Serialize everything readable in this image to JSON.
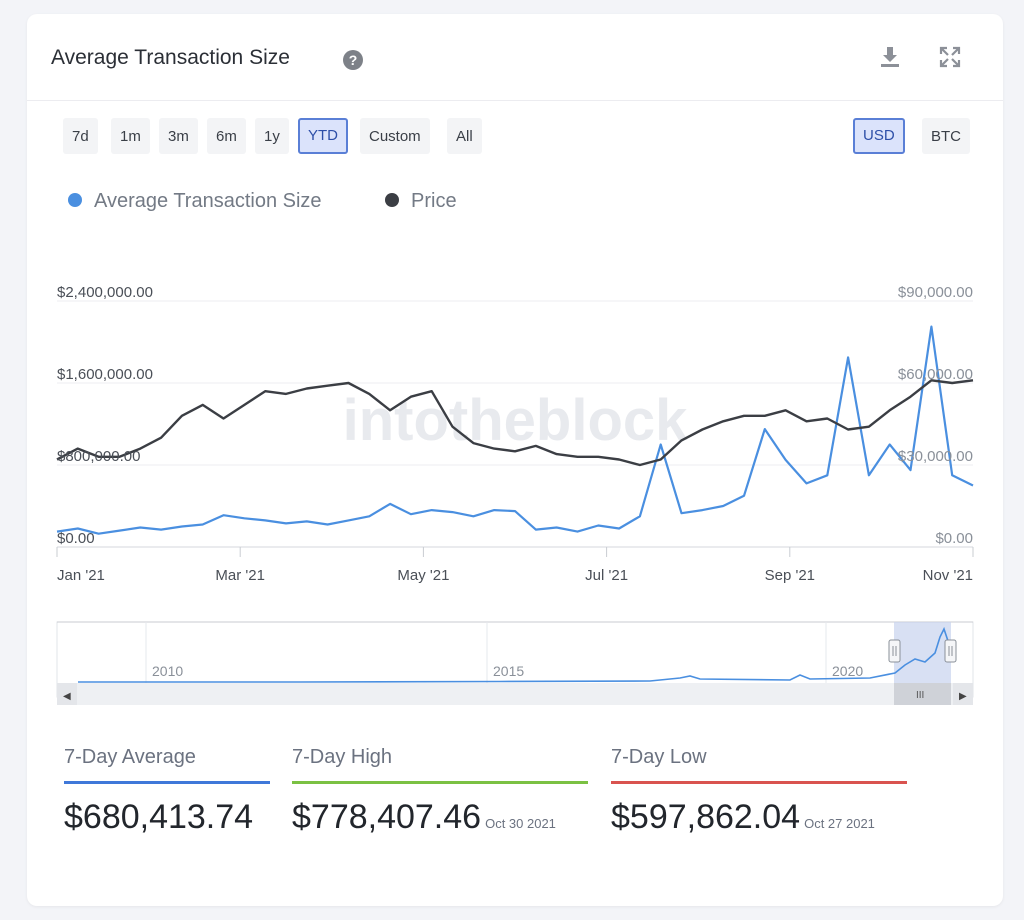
{
  "header": {
    "title": "Average Transaction Size",
    "help_icon": "question-circle-icon",
    "download_icon": "download-icon",
    "fullscreen_icon": "expand-icon"
  },
  "range_buttons": [
    {
      "label": "7d",
      "active": false
    },
    {
      "label": "1m",
      "active": false
    },
    {
      "label": "3m",
      "active": false
    },
    {
      "label": "6m",
      "active": false
    },
    {
      "label": "1y",
      "active": false
    },
    {
      "label": "YTD",
      "active": true
    },
    {
      "label": "Custom",
      "active": false
    },
    {
      "label": "All",
      "active": false
    }
  ],
  "currency_buttons": [
    {
      "label": "USD",
      "active": true
    },
    {
      "label": "BTC",
      "active": false
    }
  ],
  "watermark": "intotheblock",
  "navigator": {
    "year_labels": [
      "2010",
      "2015",
      "2020"
    ],
    "left_arrow": "◀",
    "right_arrow": "▶",
    "grip": "III"
  },
  "stats": [
    {
      "label": "7-Day Average",
      "value": "$680,413.74",
      "date": "",
      "color": "#3f78d9"
    },
    {
      "label": "7-Day High",
      "value": "$778,407.46",
      "date": "Oct 30 2021",
      "color": "#7bc143"
    },
    {
      "label": "7-Day Low",
      "value": "$597,862.04",
      "date": "Oct 27 2021",
      "color": "#d9534f"
    }
  ],
  "chart_data": {
    "type": "line",
    "title": "Average Transaction Size",
    "legend_position": "top-left",
    "x_ticks": [
      "Jan '21",
      "Mar '21",
      "May '21",
      "Jul '21",
      "Sep '21",
      "Nov '21"
    ],
    "y_left": {
      "ticks": [
        "$0.00",
        "$800,000.00",
        "$1,600,000.00",
        "$2,400,000.00"
      ],
      "range": [
        0,
        2400000
      ]
    },
    "y_right": {
      "ticks": [
        "$0.00",
        "$30,000.00",
        "$60,000.00",
        "$90,000.00"
      ],
      "range": [
        0,
        90000
      ]
    },
    "grid": true,
    "x": [
      "Jan 1",
      "Jan 8",
      "Jan 15",
      "Jan 22",
      "Jan 29",
      "Feb 5",
      "Feb 12",
      "Feb 19",
      "Feb 26",
      "Mar 5",
      "Mar 12",
      "Mar 19",
      "Mar 26",
      "Apr 2",
      "Apr 9",
      "Apr 16",
      "Apr 23",
      "Apr 30",
      "May 7",
      "May 14",
      "May 21",
      "May 28",
      "Jun 4",
      "Jun 11",
      "Jun 18",
      "Jun 25",
      "Jul 2",
      "Jul 9",
      "Jul 16",
      "Jul 23",
      "Jul 30",
      "Aug 6",
      "Aug 13",
      "Aug 20",
      "Aug 27",
      "Sep 3",
      "Sep 10",
      "Sep 17",
      "Sep 24",
      "Oct 1",
      "Oct 8",
      "Oct 15",
      "Oct 22",
      "Oct 29",
      "Nov 5"
    ],
    "series": [
      {
        "name": "Average Transaction Size",
        "axis": "left",
        "color": "#4a8fe0",
        "values": [
          150000,
          180000,
          130000,
          160000,
          190000,
          170000,
          200000,
          220000,
          310000,
          280000,
          260000,
          230000,
          250000,
          220000,
          260000,
          300000,
          420000,
          320000,
          360000,
          340000,
          300000,
          360000,
          350000,
          170000,
          190000,
          150000,
          210000,
          180000,
          300000,
          1000000,
          330000,
          360000,
          400000,
          500000,
          1150000,
          850000,
          620000,
          700000,
          1850000,
          700000,
          1000000,
          750000,
          2150000,
          700000,
          600000
        ]
      },
      {
        "name": "Price",
        "axis": "right",
        "color": "#3b3e44",
        "values": [
          32000,
          36000,
          33000,
          33000,
          36000,
          40000,
          48000,
          52000,
          47000,
          52000,
          57000,
          56000,
          58000,
          59000,
          60000,
          56000,
          50000,
          55000,
          57000,
          44000,
          38000,
          36000,
          35000,
          37000,
          34000,
          33000,
          33000,
          32000,
          30000,
          32000,
          39000,
          43000,
          46000,
          48000,
          48000,
          50000,
          46000,
          47000,
          43000,
          44000,
          50000,
          55000,
          61000,
          60000,
          61000
        ]
      }
    ]
  }
}
